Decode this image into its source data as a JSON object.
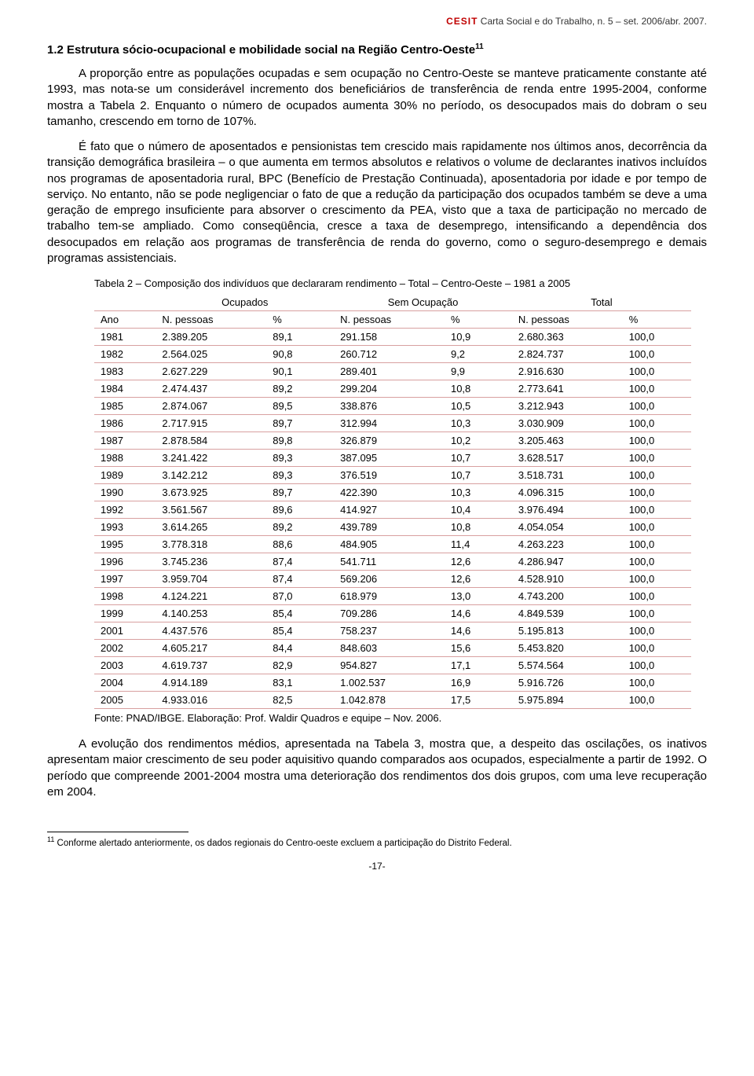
{
  "header": {
    "logo": "CESIT",
    "journal": "Carta Social e do Trabalho, n. 5 – set. 2006/abr. 2007."
  },
  "section": {
    "number": "1.2",
    "title": "Estrutura sócio-ocupacional e mobilidade social na Região Centro-Oeste",
    "sup": "11"
  },
  "para1": "A proporção entre as populações ocupadas e sem ocupação no Centro-Oeste se manteve praticamente constante até 1993, mas nota-se um considerável incremento dos beneficiários de transferência de renda entre 1995-2004, conforme mostra a Tabela 2. Enquanto o número de ocupados aumenta 30% no período, os desocupados mais do dobram o seu tamanho, crescendo em torno de 107%.",
  "para2": "É fato que o número de aposentados e pensionistas tem crescido mais rapidamente nos últimos anos, decorrência da transição demográfica brasileira – o que aumenta em termos absolutos e relativos o volume de declarantes inativos incluídos nos programas de aposentadoria rural, BPC (Benefício de Prestação Continuada), aposentadoria por idade e por tempo de serviço. No entanto, não se pode negligenciar o fato de que a redução da participação dos ocupados também se deve a uma geração de emprego insuficiente para absorver o crescimento da PEA, visto que a taxa de participação no mercado de trabalho tem-se ampliado. Como conseqüência, cresce a taxa de desemprego, intensificando a dependência dos desocupados em relação aos programas de transferência de renda do governo, como o seguro-desemprego e demais programas assistenciais.",
  "table": {
    "caption": "Tabela 2 – Composição dos indivíduos que declararam rendimento – Total – Centro-Oeste – 1981 a 2005",
    "group_headers": [
      "",
      "Ocupados",
      "Sem Ocupação",
      "Total"
    ],
    "columns": [
      "Ano",
      "N. pessoas",
      "%",
      "N. pessoas",
      "%",
      "N. pessoas",
      "%"
    ],
    "rows": [
      [
        "1981",
        "2.389.205",
        "89,1",
        "291.158",
        "10,9",
        "2.680.363",
        "100,0"
      ],
      [
        "1982",
        "2.564.025",
        "90,8",
        "260.712",
        "9,2",
        "2.824.737",
        "100,0"
      ],
      [
        "1983",
        "2.627.229",
        "90,1",
        "289.401",
        "9,9",
        "2.916.630",
        "100,0"
      ],
      [
        "1984",
        "2.474.437",
        "89,2",
        "299.204",
        "10,8",
        "2.773.641",
        "100,0"
      ],
      [
        "1985",
        "2.874.067",
        "89,5",
        "338.876",
        "10,5",
        "3.212.943",
        "100,0"
      ],
      [
        "1986",
        "2.717.915",
        "89,7",
        "312.994",
        "10,3",
        "3.030.909",
        "100,0"
      ],
      [
        "1987",
        "2.878.584",
        "89,8",
        "326.879",
        "10,2",
        "3.205.463",
        "100,0"
      ],
      [
        "1988",
        "3.241.422",
        "89,3",
        "387.095",
        "10,7",
        "3.628.517",
        "100,0"
      ],
      [
        "1989",
        "3.142.212",
        "89,3",
        "376.519",
        "10,7",
        "3.518.731",
        "100,0"
      ],
      [
        "1990",
        "3.673.925",
        "89,7",
        "422.390",
        "10,3",
        "4.096.315",
        "100,0"
      ],
      [
        "1992",
        "3.561.567",
        "89,6",
        "414.927",
        "10,4",
        "3.976.494",
        "100,0"
      ],
      [
        "1993",
        "3.614.265",
        "89,2",
        "439.789",
        "10,8",
        "4.054.054",
        "100,0"
      ],
      [
        "1995",
        "3.778.318",
        "88,6",
        "484.905",
        "11,4",
        "4.263.223",
        "100,0"
      ],
      [
        "1996",
        "3.745.236",
        "87,4",
        "541.711",
        "12,6",
        "4.286.947",
        "100,0"
      ],
      [
        "1997",
        "3.959.704",
        "87,4",
        "569.206",
        "12,6",
        "4.528.910",
        "100,0"
      ],
      [
        "1998",
        "4.124.221",
        "87,0",
        "618.979",
        "13,0",
        "4.743.200",
        "100,0"
      ],
      [
        "1999",
        "4.140.253",
        "85,4",
        "709.286",
        "14,6",
        "4.849.539",
        "100,0"
      ],
      [
        "2001",
        "4.437.576",
        "85,4",
        "758.237",
        "14,6",
        "5.195.813",
        "100,0"
      ],
      [
        "2002",
        "4.605.217",
        "84,4",
        "848.603",
        "15,6",
        "5.453.820",
        "100,0"
      ],
      [
        "2003",
        "4.619.737",
        "82,9",
        "954.827",
        "17,1",
        "5.574.564",
        "100,0"
      ],
      [
        "2004",
        "4.914.189",
        "83,1",
        "1.002.537",
        "16,9",
        "5.916.726",
        "100,0"
      ],
      [
        "2005",
        "4.933.016",
        "82,5",
        "1.042.878",
        "17,5",
        "5.975.894",
        "100,0"
      ]
    ],
    "source": "Fonte: PNAD/IBGE. Elaboração: Prof. Waldir Quadros e equipe – Nov. 2006.",
    "col_widths": [
      "70px",
      "140px",
      "80px",
      "140px",
      "80px",
      "140px",
      "80px"
    ],
    "border_color": "#d8a0a0",
    "font_size": 13
  },
  "para3": "A evolução dos rendimentos médios, apresentada na Tabela 3, mostra que, a despeito das oscilações, os inativos apresentam maior crescimento de seu poder aquisitivo quando comparados aos ocupados, especialmente a partir de 1992. O período que compreende 2001-2004 mostra uma deterioração dos rendimentos dos dois grupos, com uma leve recuperação em 2004.",
  "footnote": {
    "num": "11",
    "text": "Conforme alertado anteriormente, os dados regionais do Centro-oeste excluem a participação do Distrito Federal."
  },
  "page_number": "-17-",
  "colors": {
    "logo": "#c00000",
    "text": "#000000",
    "background": "#ffffff"
  },
  "typography": {
    "body_fontsize_pt": 11,
    "title_fontsize_pt": 11,
    "caption_fontsize_pt": 10,
    "footnote_fontsize_pt": 9,
    "font_family": "Arial"
  }
}
